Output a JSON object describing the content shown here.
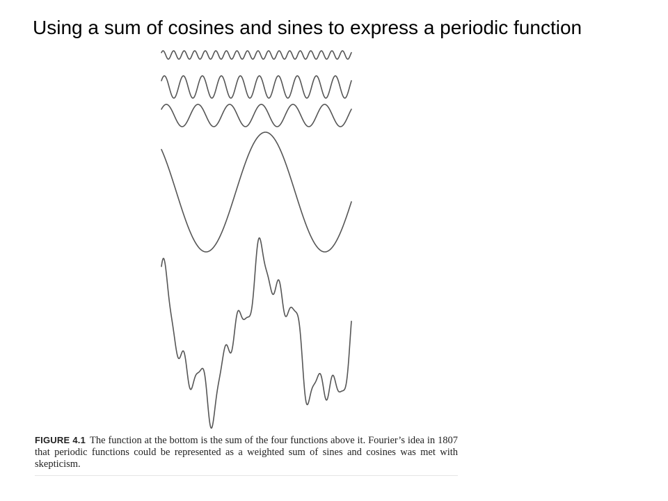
{
  "slide": {
    "title": "Using a sum of cosines and sines to express a periodic function"
  },
  "figure": {
    "components": [
      {
        "name": "cosine-wave-1",
        "frequency_ratio": 18,
        "amplitude_ratio": 0.09
      },
      {
        "name": "cosine-wave-2",
        "frequency_ratio": 10,
        "amplitude_ratio": 0.25
      },
      {
        "name": "cosine-wave-3",
        "frequency_ratio": 6,
        "amplitude_ratio": 0.27
      },
      {
        "name": "cosine-wave-4",
        "frequency_ratio": 1.6,
        "amplitude_ratio": 1.0
      }
    ],
    "sum_waveform": "sum-of-components",
    "stroke_color": "#555555"
  },
  "caption": {
    "label": "FIGURE 4.1",
    "text": "The function at the bottom is the sum of the four functions above it. Fourier’s idea in 1807 that periodic functions could be represented as a weighted sum of sines and cosines was met with skepticism."
  }
}
